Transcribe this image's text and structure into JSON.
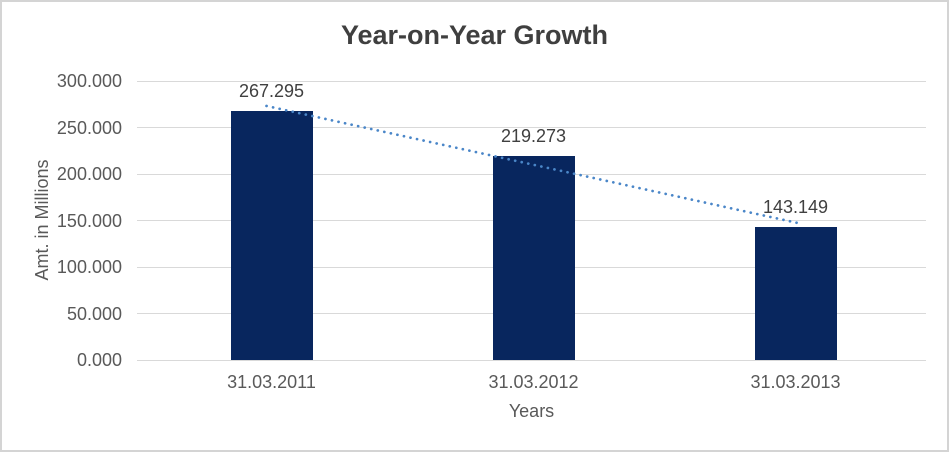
{
  "chart_data": {
    "type": "bar",
    "title": "Year-on-Year Growth",
    "categories": [
      "31.03.2011",
      "31.03.2012",
      "31.03.2013"
    ],
    "values": [
      267.295,
      219.273,
      143.149
    ],
    "data_labels": [
      "267.295",
      "219.273",
      "143.149"
    ],
    "xlabel": "Years",
    "ylabel": "Amt. in Millions",
    "ylim": [
      0,
      300
    ],
    "ytick_labels": [
      "0.000",
      "50.000",
      "100.000",
      "150.000",
      "200.000",
      "250.000",
      "300.000"
    ],
    "ytick_values": [
      0,
      50,
      100,
      150,
      200,
      250,
      300
    ],
    "grid": true,
    "legend_position": "none",
    "trendline": {
      "type": "linear",
      "style": "dotted"
    },
    "colors": {
      "bar": "#08265e",
      "trendline": "#4a86c8",
      "title_text": "#3f3f3f",
      "axis_text": "#595959",
      "data_label_text": "#404040",
      "gridline": "#d9d9d9",
      "frame_border": "#d4d4d4",
      "background": "#ffffff"
    }
  }
}
